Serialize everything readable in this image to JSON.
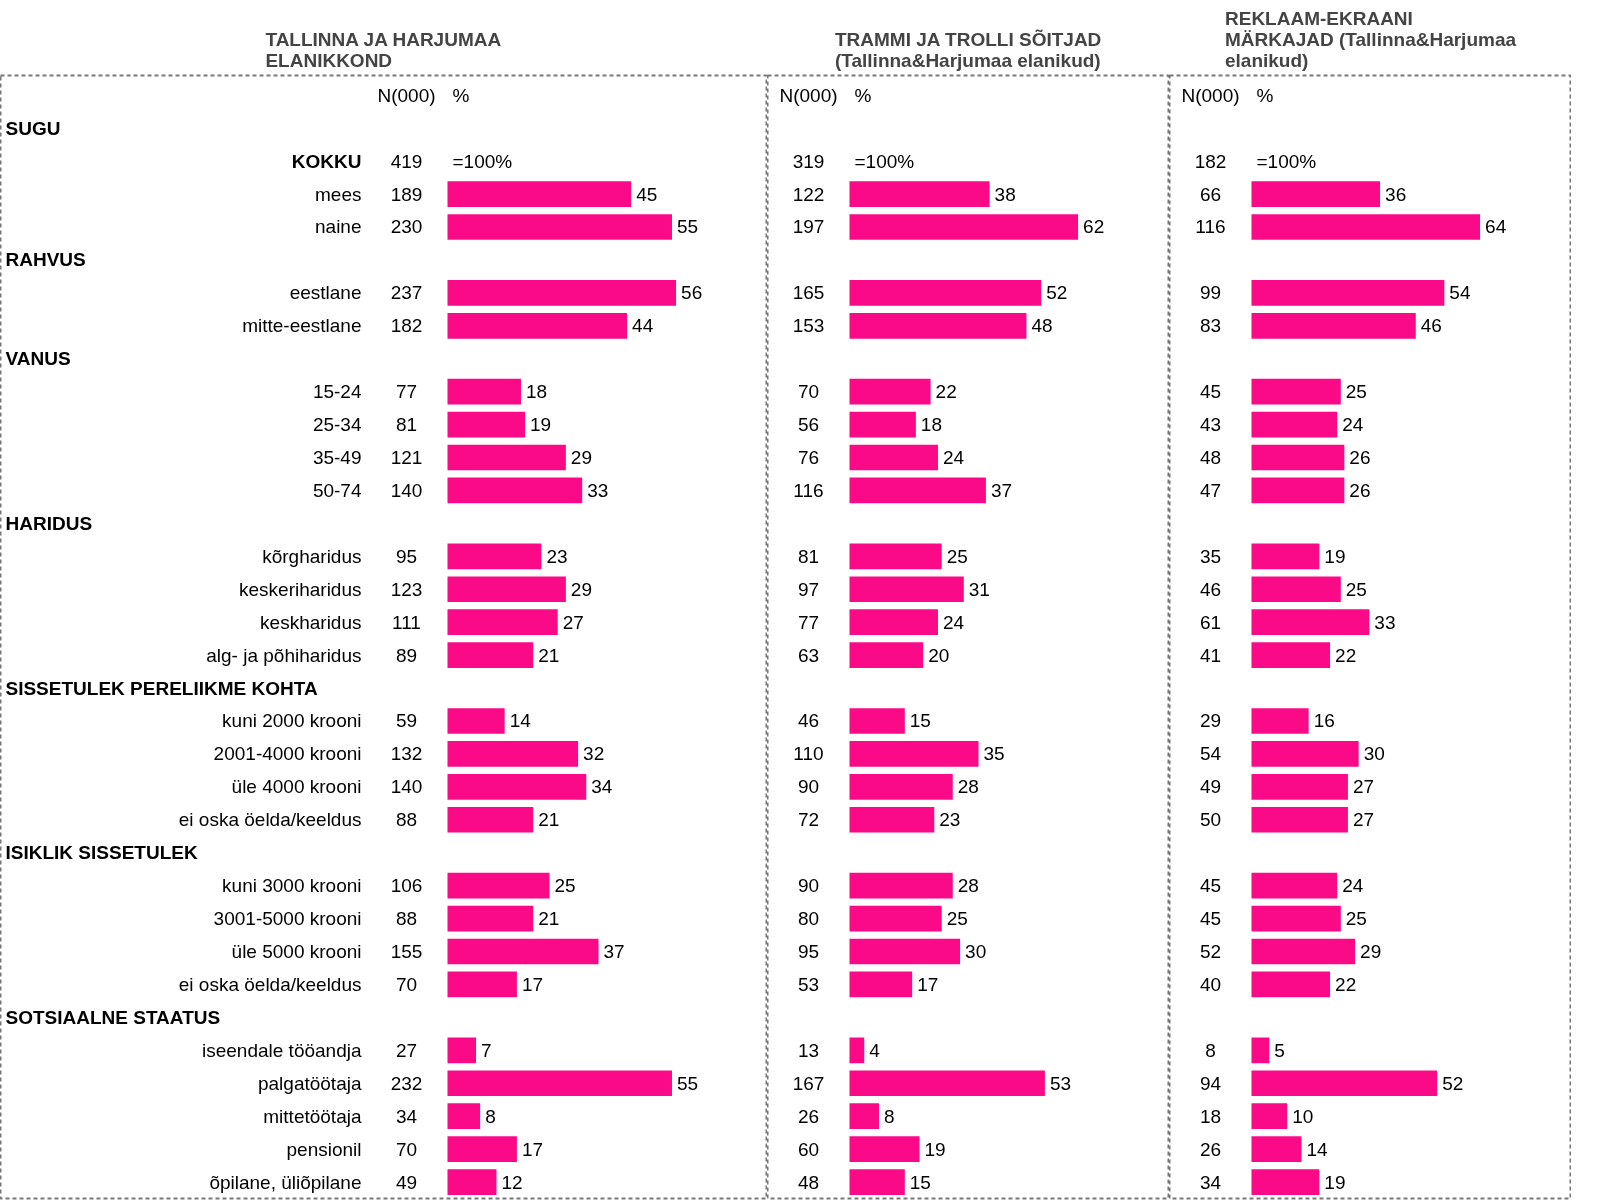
{
  "chart_data": [
    {
      "type": "bar",
      "orientation": "horizontal",
      "title": "TALLINNA JA HARJUMAA\nELANIKKOND",
      "color": "#fa0a87",
      "tick_labels": "y",
      "categories": [
        null,
        "KOKKU",
        "mees",
        "naine",
        null,
        "eestlane",
        "mitte-eestlane",
        null,
        "15-24",
        "25-34",
        "35-49",
        "50-74",
        null,
        "kõrgharidus",
        "keskeriharidus",
        "keskharidus",
        "alg- ja põhiharidus",
        null,
        "kuni 2000 krooni",
        "2001-4000 krooni",
        "üle 4000 krooni",
        "ei oska öelda/keeldus",
        null,
        "kuni 3000 krooni",
        "3001-5000 krooni",
        "üle 5000 krooni",
        "ei oska öelda/keeldus",
        null,
        "iseendale tööandja",
        "palgatöötaja",
        "mittetöötaja",
        "pensionil",
        "õpilane, üliõpilane"
      ],
      "values": [
        null,
        null,
        45,
        55,
        null,
        56,
        44,
        null,
        18,
        19,
        29,
        33,
        null,
        23,
        29,
        27,
        21,
        null,
        14,
        32,
        34,
        21,
        null,
        25,
        21,
        37,
        17,
        null,
        7,
        55,
        8,
        17,
        12
      ],
      "value_labels": [
        null,
        "=100%",
        "45",
        "55",
        null,
        "56",
        "44",
        null,
        "18",
        "19",
        "29",
        "33",
        null,
        "23",
        "29",
        "27",
        "21",
        null,
        "14",
        "32",
        "34",
        "21",
        null,
        "25",
        "21",
        "37",
        "17",
        null,
        "7",
        "55",
        "8",
        "17",
        "12"
      ],
      "annotations": [
        "N(000)",
        "%",
        "SUGU",
        "419",
        "189",
        "230",
        "RAHVUS",
        "237",
        "182",
        "VANUS",
        "77",
        "81",
        "121",
        "140",
        "HARIDUS",
        "95",
        "123",
        "111",
        "89",
        "SISSETULEK PERELIIKME KOHTA",
        "59",
        "132",
        "140",
        "88",
        "ISIKLIK SISSETULEK",
        "106",
        "88",
        "155",
        "70",
        "SOTSIAALNE STAATUS",
        "27",
        "232",
        "34",
        "70",
        "49"
      ]
    },
    {
      "type": "bar",
      "orientation": "horizontal",
      "title": "TRAMMI JA TROLLI SÕITJAD\n(Tallinna&Harjumaa elanikud)",
      "color": "#fa0a87",
      "tick_labels": false,
      "categories": [
        null,
        null,
        null,
        null,
        null,
        null,
        null,
        null,
        null,
        null,
        null,
        null,
        null,
        null,
        null,
        null,
        null,
        null,
        null,
        null,
        null,
        null,
        null,
        null,
        null,
        null,
        null,
        null,
        null,
        null,
        null,
        null,
        null
      ],
      "values": [
        null,
        null,
        38,
        62,
        null,
        52,
        48,
        null,
        22,
        18,
        24,
        37,
        null,
        25,
        31,
        24,
        20,
        null,
        15,
        35,
        28,
        23,
        null,
        28,
        25,
        30,
        17,
        null,
        4,
        53,
        8,
        19,
        15
      ],
      "value_labels": [
        null,
        "=100%",
        "38",
        "62",
        null,
        "52",
        "48",
        null,
        "22",
        "18",
        "24",
        "37",
        null,
        "25",
        "31",
        "24",
        "20",
        null,
        "15",
        "35",
        "28",
        "23",
        null,
        "28",
        "25",
        "30",
        "17",
        null,
        "4",
        "53",
        "8",
        "19",
        "15"
      ],
      "annotations": [
        "N(000)",
        "%",
        "319",
        "122",
        "197",
        "165",
        "153",
        "70",
        "56",
        "76",
        "116",
        "81",
        "97",
        "77",
        "63",
        "46",
        "110",
        "90",
        "72",
        "90",
        "80",
        "95",
        "53",
        "13",
        "167",
        "26",
        "60",
        "48"
      ]
    },
    {
      "type": "bar",
      "orientation": "horizontal",
      "title": "REKLAAM-EKRAANI\nMÄRKAJAD (Tallinna&Harjumaa\nelanikud)",
      "color": "#fa0a87",
      "tick_labels": false,
      "categories": [
        null,
        null,
        null,
        null,
        null,
        null,
        null,
        null,
        null,
        null,
        null,
        null,
        null,
        null,
        null,
        null,
        null,
        null,
        null,
        null,
        null,
        null,
        null,
        null,
        null,
        null,
        null,
        null,
        null,
        null,
        null,
        null,
        null
      ],
      "values": [
        null,
        null,
        36,
        64,
        null,
        54,
        46,
        null,
        25,
        24,
        26,
        26,
        null,
        19,
        25,
        33,
        22,
        null,
        16,
        30,
        27,
        27,
        null,
        24,
        25,
        29,
        22,
        null,
        5,
        52,
        10,
        14,
        19
      ],
      "value_labels": [
        null,
        "=100%",
        "36",
        "64",
        null,
        "54",
        "46",
        null,
        "25",
        "24",
        "26",
        "26",
        null,
        "19",
        "25",
        "33",
        "22",
        null,
        "16",
        "30",
        "27",
        "27",
        null,
        "24",
        "25",
        "29",
        "22",
        null,
        "5",
        "52",
        "10",
        "14",
        "19"
      ],
      "annotations": [
        "N(000)",
        "%",
        "182",
        "66",
        "116",
        "99",
        "83",
        "45",
        "43",
        "48",
        "47",
        "35",
        "46",
        "61",
        "41",
        "29",
        "54",
        "49",
        "50",
        "45",
        "45",
        "52",
        "40",
        "8",
        "94",
        "18",
        "26",
        "34"
      ]
    }
  ]
}
